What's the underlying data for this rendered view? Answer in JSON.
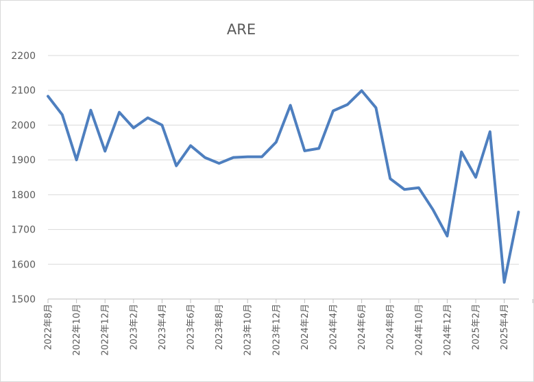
{
  "chart_data": {
    "type": "line",
    "title": "ARE",
    "xlabel": "",
    "ylabel": "",
    "ylim": [
      1500,
      2200
    ],
    "y_ticks": [
      1500,
      1600,
      1700,
      1800,
      1900,
      2000,
      2100,
      2200
    ],
    "x": [
      "2022年8月",
      "2022年9月",
      "2022年10月",
      "2022年11月",
      "2022年12月",
      "2023年1月",
      "2023年2月",
      "2023年3月",
      "2023年4月",
      "2023年5月",
      "2023年6月",
      "2023年7月",
      "2023年8月",
      "2023年9月",
      "2023年10月",
      "2023年11月",
      "2023年12月",
      "2024年1月",
      "2024年2月",
      "2024年3月",
      "2024年4月",
      "2024年5月",
      "2024年6月",
      "2024年7月",
      "2024年8月",
      "2024年9月",
      "2024年10月",
      "2024年11月",
      "2024年12月",
      "2025年1月",
      "2025年2月",
      "2025年3月",
      "2025年4月",
      "2025年5月"
    ],
    "x_tick_labels": [
      "2022年8月",
      "2022年10月",
      "2022年12月",
      "2023年2月",
      "2023年4月",
      "2023年6月",
      "2023年8月",
      "2023年10月",
      "2023年12月",
      "2024年2月",
      "2024年4月",
      "2024年6月",
      "2024年8月",
      "2024年10月",
      "2024年12月",
      "2025年2月",
      "2025年4月"
    ],
    "series": [
      {
        "values": [
          2083,
          2030,
          1900,
          2043,
          1925,
          2037,
          1992,
          2021,
          2000,
          1883,
          1941,
          1907,
          1890,
          1907,
          1909,
          1909,
          1951,
          2057,
          1926,
          1933,
          2041,
          2059,
          2099,
          2050,
          1846,
          1815,
          1820,
          1757,
          1681,
          1923,
          1850,
          1981,
          1548,
          1750
        ],
        "color": "#4e7fbf"
      }
    ],
    "grid": true,
    "legend": "none"
  }
}
